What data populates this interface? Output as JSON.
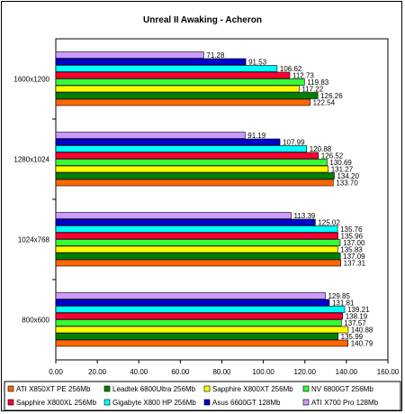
{
  "chart_data": {
    "type": "bar",
    "orientation": "horizontal",
    "title": "Unreal II Awaking - Acheron",
    "xlabel": "",
    "ylabel": "",
    "xlim": [
      0,
      160
    ],
    "x_ticks": [
      "0.00",
      "20.00",
      "40.00",
      "60.00",
      "80.00",
      "100.00",
      "120.00",
      "140.00",
      "160.00"
    ],
    "grid": false,
    "legend_position": "bottom",
    "categories": [
      "1600x1200",
      "1280x1024",
      "1024x768",
      "800x600"
    ],
    "series": [
      {
        "name": "ATI X850XT PE 256Mb",
        "color": "#FF6600",
        "values": [
          122.54,
          133.7,
          137.31,
          140.79
        ],
        "labels": [
          "122.54",
          "133.70",
          "137.31",
          "140.79"
        ]
      },
      {
        "name": "Leadtek 6800Ultra 256Mb",
        "color": "#008000",
        "values": [
          126.26,
          134.2,
          137.09,
          135.99
        ],
        "labels": [
          "126.26",
          "134.20",
          "137.09",
          "135.99"
        ]
      },
      {
        "name": "Sapphire X800XT 256Mb",
        "color": "#FFFF00",
        "values": [
          117.22,
          131.27,
          135.83,
          140.88
        ],
        "labels": [
          "117.22",
          "131.27",
          "135.83",
          "140.88"
        ]
      },
      {
        "name": "NV 6800GT 256Mb",
        "color": "#33FF33",
        "values": [
          119.83,
          130.69,
          137.0,
          137.57
        ],
        "labels": [
          "119.83",
          "130.69",
          "137.00",
          "137.57"
        ]
      },
      {
        "name": "Sapphire X800XL 256Mb",
        "color": "#FF0033",
        "values": [
          112.73,
          126.52,
          135.96,
          138.19
        ],
        "labels": [
          "112.73",
          "126.52",
          "135.96",
          "138.19"
        ]
      },
      {
        "name": "Gigabyte X800 HP 256Mb",
        "color": "#00FFFF",
        "values": [
          106.62,
          120.88,
          135.76,
          139.21
        ],
        "labels": [
          "106.62",
          "120.88",
          "135.76",
          "139.21"
        ]
      },
      {
        "name": "Asus 6600GT 128Mb",
        "color": "#0000CC",
        "values": [
          91.53,
          107.99,
          125.02,
          131.81
        ],
        "labels": [
          "91.53",
          "107.99",
          "125.02",
          "131.81"
        ]
      },
      {
        "name": "ATI X700 Pro 128Mb",
        "color": "#CC99FF",
        "values": [
          71.28,
          91.19,
          113.39,
          129.85
        ],
        "labels": [
          "71.28",
          "91.19",
          "113.39",
          "129.85"
        ]
      }
    ],
    "legend_order": [
      "ATI X850XT PE 256Mb",
      "Leadtek 6800Ultra 256Mb",
      "Sapphire X800XT 256Mb",
      "NV 6800GT 256Mb",
      "Sapphire X800XL 256Mb",
      "Gigabyte X800 HP 256Mb",
      "Asus 6600GT 128Mb",
      "ATI X700 Pro 128Mb"
    ]
  }
}
